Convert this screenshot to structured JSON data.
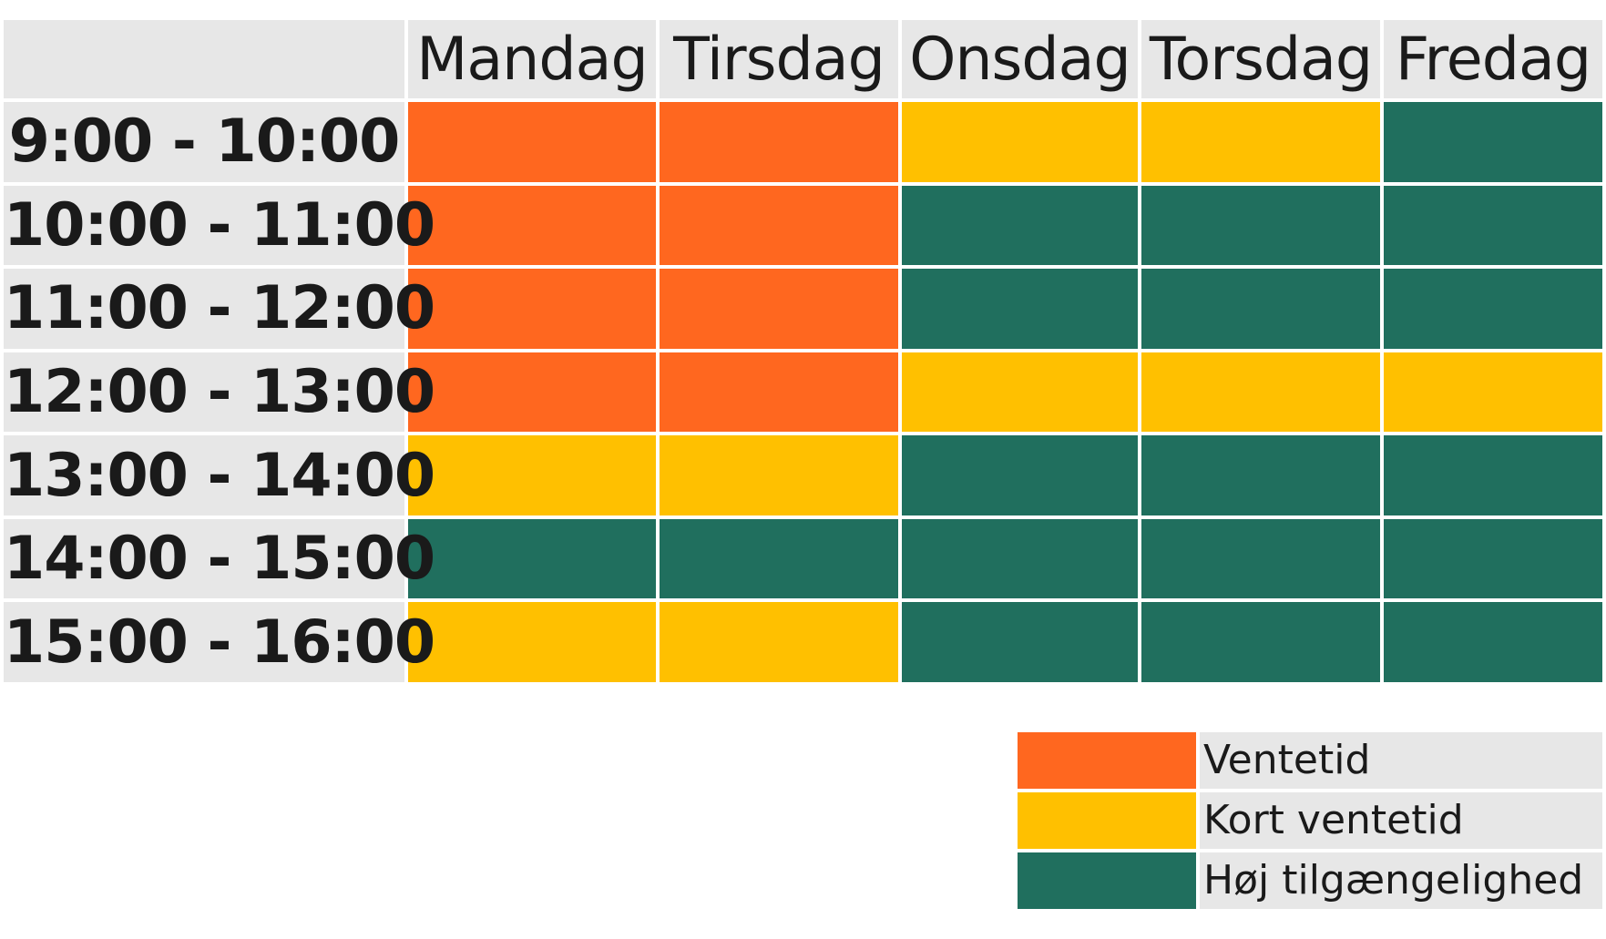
{
  "chart_data": {
    "type": "heatmap",
    "columns": [
      "Mandag",
      "Tirsdag",
      "Onsdag",
      "Torsdag",
      "Fredag"
    ],
    "rows": [
      {
        "label": "9:00 - 10:00",
        "values": [
          "Ventetid",
          "Ventetid",
          "Kort ventetid",
          "Kort ventetid",
          "Høj tilgængelighed"
        ]
      },
      {
        "label": "10:00 - 11:00",
        "values": [
          "Ventetid",
          "Ventetid",
          "Høj tilgængelighed",
          "Høj tilgængelighed",
          "Høj tilgængelighed"
        ]
      },
      {
        "label": "11:00 - 12:00",
        "values": [
          "Ventetid",
          "Ventetid",
          "Høj tilgængelighed",
          "Høj tilgængelighed",
          "Høj tilgængelighed"
        ]
      },
      {
        "label": "12:00 - 13:00",
        "values": [
          "Ventetid",
          "Ventetid",
          "Kort ventetid",
          "Kort ventetid",
          "Kort ventetid"
        ]
      },
      {
        "label": "13:00 - 14:00",
        "values": [
          "Kort ventetid",
          "Kort ventetid",
          "Høj tilgængelighed",
          "Høj tilgængelighed",
          "Høj tilgængelighed"
        ]
      },
      {
        "label": "14:00 - 15:00",
        "values": [
          "Høj tilgængelighed",
          "Høj tilgængelighed",
          "Høj tilgængelighed",
          "Høj tilgængelighed",
          "Høj tilgængelighed"
        ]
      },
      {
        "label": "15:00 - 16:00",
        "values": [
          "Kort ventetid",
          "Kort ventetid",
          "Høj tilgængelighed",
          "Høj tilgængelighed",
          "Høj tilgængelighed"
        ]
      }
    ],
    "legend": [
      {
        "label": "Ventetid",
        "color": "#ff671f"
      },
      {
        "label": "Kort ventetid",
        "color": "#ffc000"
      },
      {
        "label": "Høj tilgængelighed",
        "color": "#206f5e"
      }
    ],
    "legend_position": "bottom-right",
    "header_background": "#e7e7e7"
  }
}
